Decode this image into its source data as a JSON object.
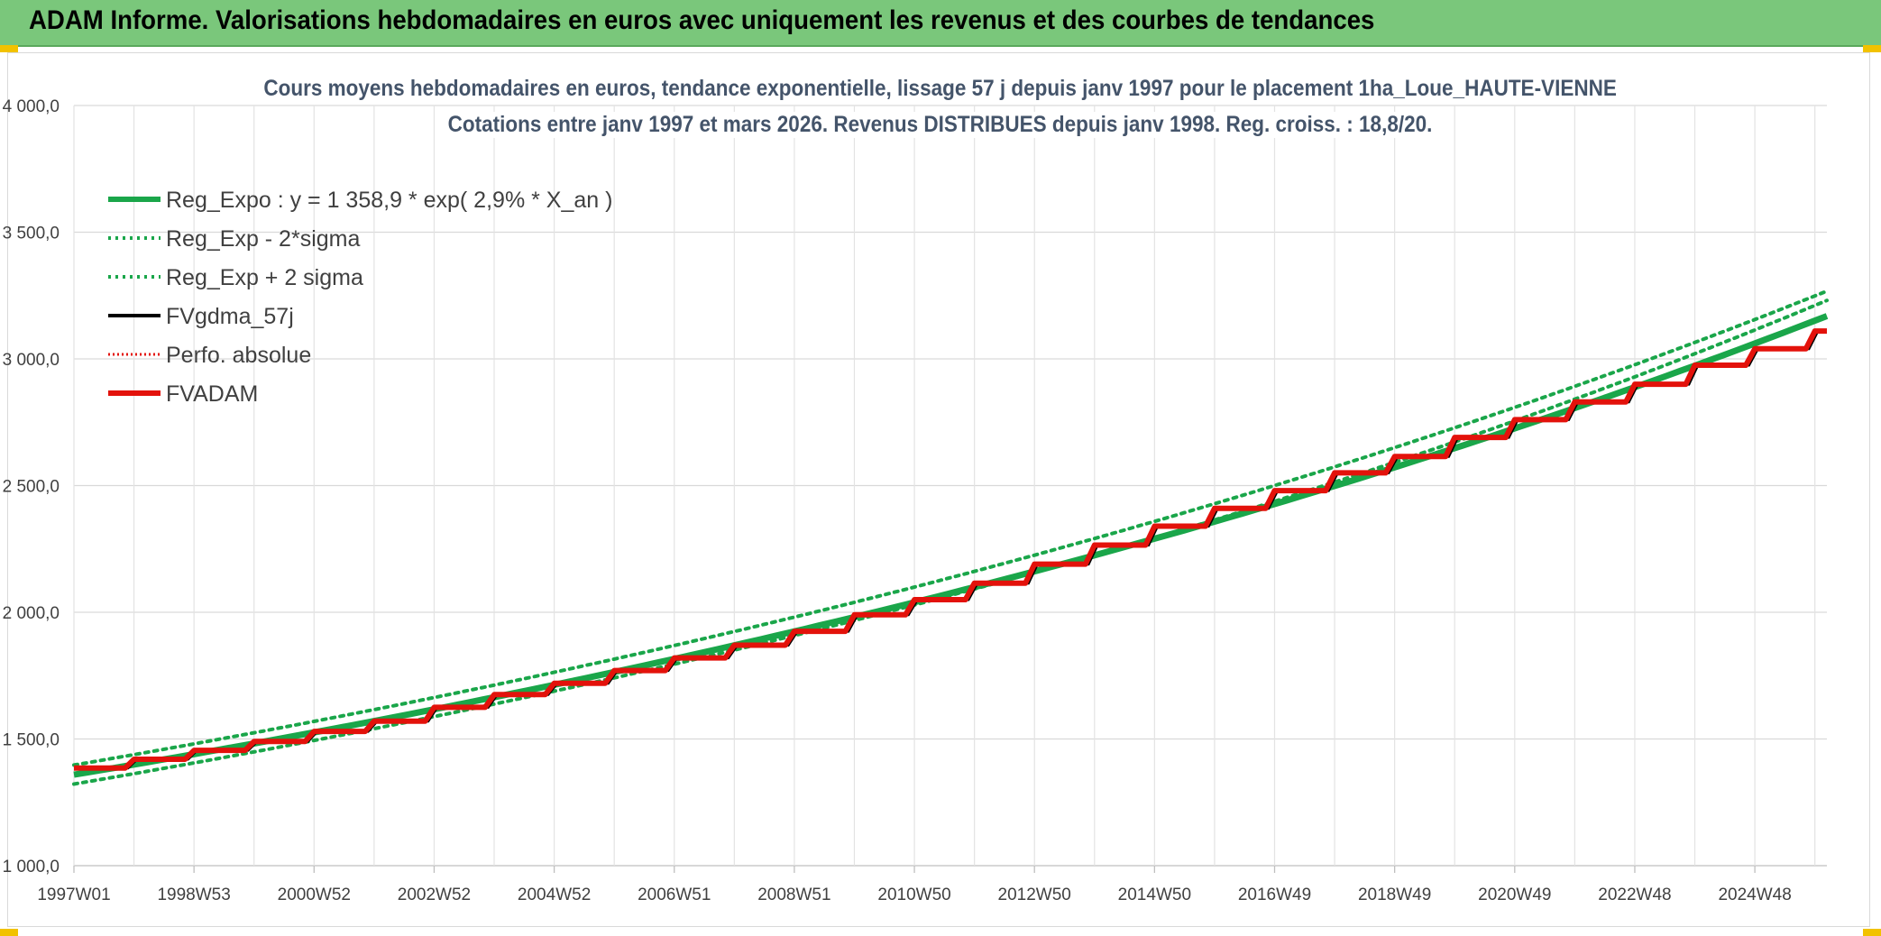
{
  "banner": {
    "title": "ADAM Informe. Valorisations hebdomadaires en euros avec uniquement les revenus et des courbes de tendances"
  },
  "chart_data": {
    "type": "line",
    "title": "Cours moyens hebdomadaires en euros, tendance exponentielle, lissage 57 j depuis janv 1997 pour le placement 1ha_Loue_HAUTE-VIENNE",
    "subtitle": "Cotations entre janv 1997 et mars 2026. Revenus DISTRIBUES depuis janv 1998. Reg. croiss. : 18,8/20.",
    "xlabel": "",
    "ylabel": "",
    "ylim": [
      1000,
      4000
    ],
    "yticks": [
      "1 000,0",
      "1 500,0",
      "2 000,0",
      "2 500,0",
      "3 000,0",
      "3 500,0",
      "4 000,0"
    ],
    "xticks": [
      "1997W01",
      "1998W53",
      "2000W52",
      "2002W52",
      "2004W52",
      "2006W51",
      "2008W51",
      "2010W50",
      "2012W50",
      "2014W50",
      "2016W49",
      "2018W49",
      "2020W49",
      "2022W48",
      "2024W48"
    ],
    "x_range_years": [
      1997.0,
      2026.2
    ],
    "grid": true,
    "legend_position": "top-left",
    "colors": {
      "green": "#1aa64a",
      "black": "#000000",
      "red": "#e3120b"
    },
    "series": [
      {
        "name": "Reg_Expo : y = 1 358,9 * exp( 2,9% *  X_an )",
        "style": "solid-green",
        "formula": {
          "a": 1358.9,
          "r": 0.029
        }
      },
      {
        "name": "Reg_Exp - 2*sigma",
        "style": "dotted-green",
        "formula": {
          "a": 1322,
          "r": 0.0306
        }
      },
      {
        "name": "Reg_Exp + 2 sigma",
        "style": "dotted-green",
        "formula": {
          "a": 1397,
          "r": 0.0291
        }
      },
      {
        "name": "FVgdma_57j",
        "style": "solid-black"
      },
      {
        "name": "Perfo. absolue",
        "style": "dotted-red"
      },
      {
        "name": "FVADAM",
        "style": "solid-red"
      }
    ],
    "steps": [
      {
        "year": 1997,
        "value": 1385
      },
      {
        "year": 1998,
        "value": 1420
      },
      {
        "year": 1999,
        "value": 1455
      },
      {
        "year": 2000,
        "value": 1490
      },
      {
        "year": 2001,
        "value": 1530
      },
      {
        "year": 2002,
        "value": 1570
      },
      {
        "year": 2003,
        "value": 1625
      },
      {
        "year": 2004,
        "value": 1675
      },
      {
        "year": 2005,
        "value": 1720
      },
      {
        "year": 2006,
        "value": 1770
      },
      {
        "year": 2007,
        "value": 1820
      },
      {
        "year": 2008,
        "value": 1870
      },
      {
        "year": 2009,
        "value": 1925
      },
      {
        "year": 2010,
        "value": 1990
      },
      {
        "year": 2011,
        "value": 2050
      },
      {
        "year": 2012,
        "value": 2115
      },
      {
        "year": 2013,
        "value": 2190
      },
      {
        "year": 2014,
        "value": 2265
      },
      {
        "year": 2015,
        "value": 2340
      },
      {
        "year": 2016,
        "value": 2410
      },
      {
        "year": 2017,
        "value": 2480
      },
      {
        "year": 2018,
        "value": 2550
      },
      {
        "year": 2019,
        "value": 2615
      },
      {
        "year": 2020,
        "value": 2690
      },
      {
        "year": 2021,
        "value": 2760
      },
      {
        "year": 2022,
        "value": 2830
      },
      {
        "year": 2023,
        "value": 2900
      },
      {
        "year": 2024,
        "value": 2975
      },
      {
        "year": 2025,
        "value": 3040
      },
      {
        "year": 2026,
        "value": 3110
      }
    ]
  }
}
